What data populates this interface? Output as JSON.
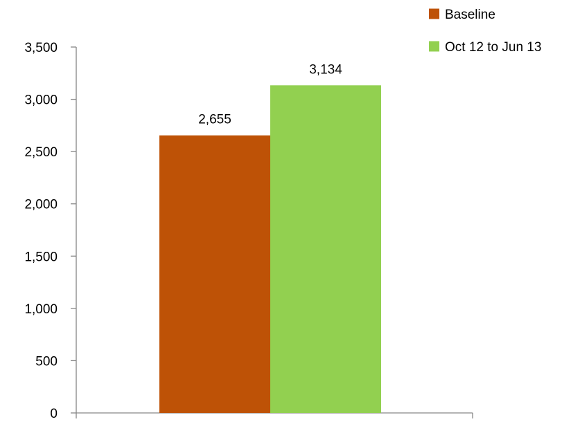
{
  "chart_data": {
    "type": "bar",
    "categories": [
      ""
    ],
    "series": [
      {
        "name": "Baseline",
        "values": [
          2655
        ],
        "labels": [
          "2,655"
        ]
      },
      {
        "name": "Oct 12 to Jun 13",
        "values": [
          3134
        ],
        "labels": [
          "3,134"
        ]
      }
    ],
    "ylim": [
      0,
      3500
    ],
    "yticks": [
      0,
      500,
      1000,
      1500,
      2000,
      2500,
      3000,
      3500
    ],
    "ytick_labels": [
      "0",
      "500",
      "1,000",
      "1,500",
      "2,000",
      "2,500",
      "3,000",
      "3,500"
    ],
    "grid": false,
    "legend_position": "top-right"
  },
  "colors": {
    "Baseline": "#BE5206",
    "Oct 12 to Jun 13": "#92D050"
  }
}
